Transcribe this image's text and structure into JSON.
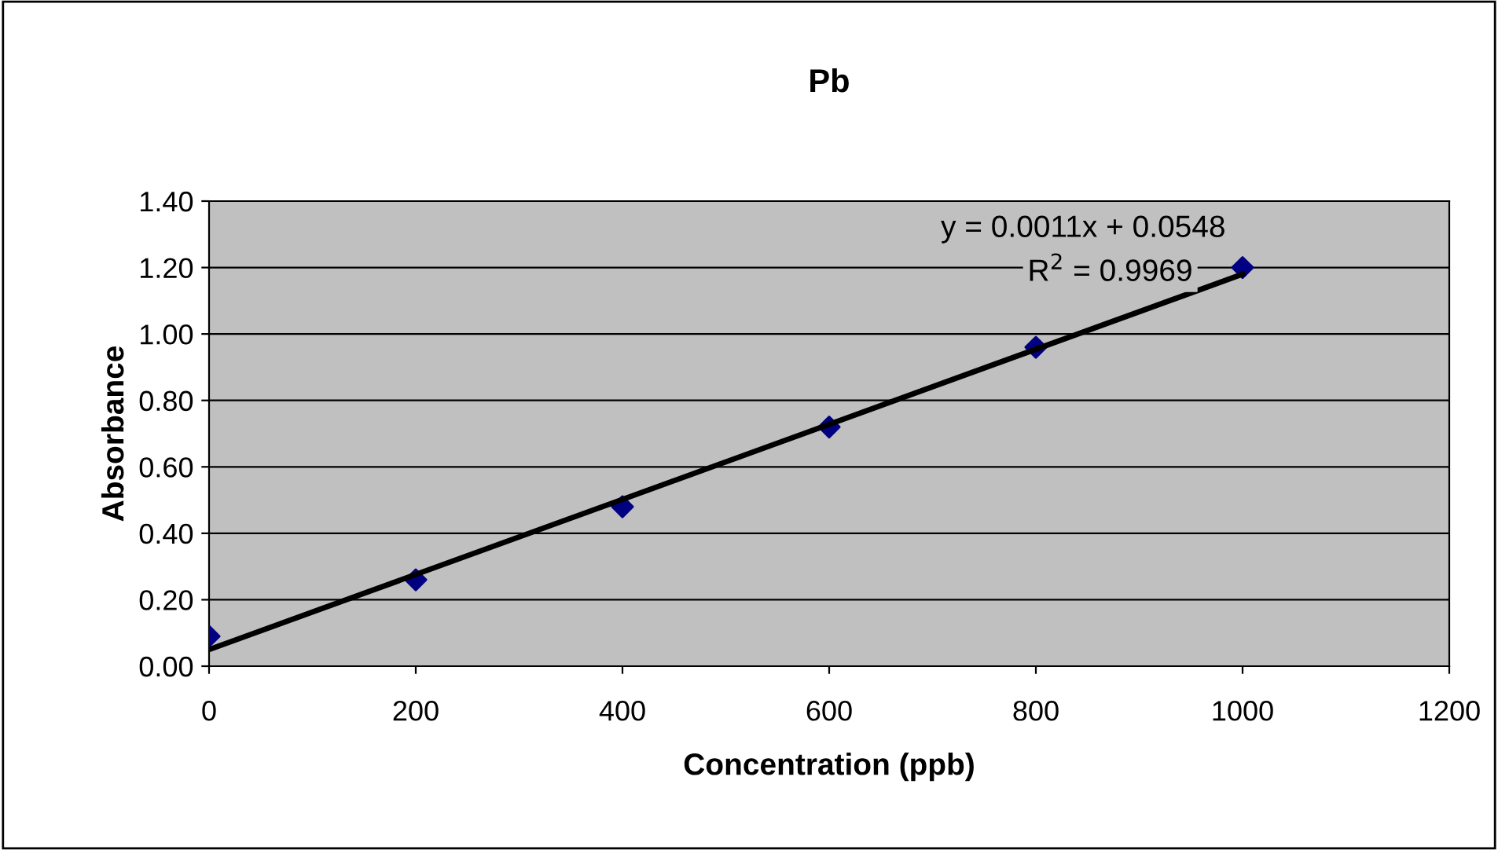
{
  "chart_data": {
    "type": "scatter",
    "title": "Pb",
    "xlabel": "Concentration (ppb)",
    "ylabel": "Absorbance",
    "series": [
      {
        "color": "#000080",
        "marker": "diamond",
        "x": [
          0,
          200,
          400,
          600,
          800,
          1000
        ],
        "values": [
          0.09,
          0.26,
          0.48,
          0.72,
          0.96,
          1.2
        ]
      },
      {
        "type": "line",
        "color": "#000000",
        "marker": "none",
        "x": [
          0,
          1000
        ],
        "values": [
          0.05,
          1.18
        ]
      }
    ],
    "annotations": [
      "y = 0.0011x + 0.0548",
      "R$^{2}$ = 0.9969"
    ],
    "xlim": [
      0,
      1200
    ],
    "xticks": [
      0,
      200,
      400,
      600,
      800,
      1000,
      1200
    ],
    "ylim": [
      0,
      1.4
    ],
    "yticks": [
      {
        "value": 0,
        "label": "0.00"
      },
      {
        "value": 0.2,
        "label": "0.20"
      },
      {
        "value": 0.4,
        "label": "0.40"
      },
      {
        "value": 0.6,
        "label": "0.60"
      },
      {
        "value": 0.8,
        "label": "0.80"
      },
      {
        "value": 1.0,
        "label": "1.00"
      },
      {
        "value": 1.2,
        "label": "1.20"
      },
      {
        "value": 1.4,
        "label": "1.40"
      }
    ],
    "grid": "y",
    "legend": false
  }
}
